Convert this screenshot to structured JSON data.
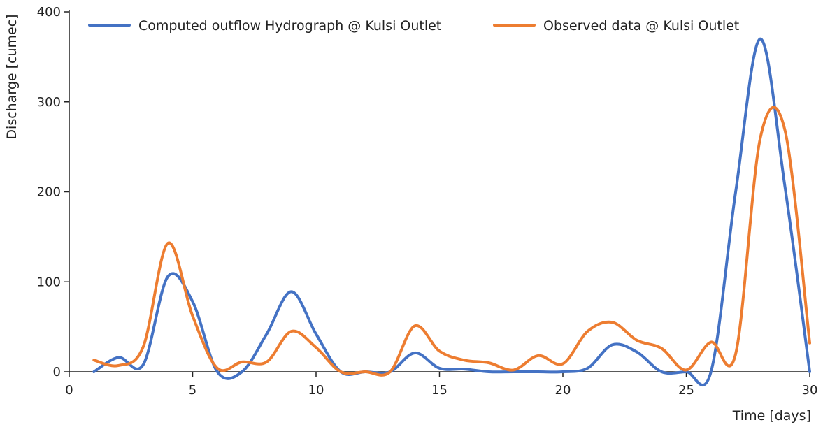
{
  "chart_data": {
    "type": "line",
    "xlabel": "Time [days]",
    "ylabel": "Discharge [cumec]",
    "xlim": [
      0,
      30
    ],
    "ylim": [
      0,
      400
    ],
    "x_ticks": [
      0,
      5,
      10,
      15,
      20,
      25,
      30
    ],
    "y_ticks": [
      0,
      100,
      200,
      300,
      400
    ],
    "grid": false,
    "legend_position": "top",
    "series": [
      {
        "name": "Computed outflow Hydrograph @ Kulsi Outlet",
        "color": "#4472c4",
        "x": [
          1,
          2,
          3,
          4,
          5,
          6,
          7,
          8,
          9,
          10,
          11,
          12,
          13,
          14,
          15,
          16,
          17,
          18,
          19,
          20,
          21,
          22,
          23,
          24,
          25,
          26,
          27,
          28,
          29,
          30
        ],
        "y": [
          0,
          16,
          8,
          106,
          78,
          0,
          0,
          42,
          89,
          42,
          0,
          0,
          0,
          21,
          4,
          3,
          0,
          0,
          0,
          0,
          4,
          30,
          22,
          0,
          0,
          0,
          200,
          370,
          205,
          0
        ]
      },
      {
        "name": "Observed data @ Kulsi Outlet",
        "color": "#ed7d31",
        "x": [
          1,
          2,
          3,
          4,
          5,
          6,
          7,
          8,
          9,
          10,
          11,
          12,
          13,
          14,
          15,
          16,
          17,
          18,
          19,
          20,
          21,
          22,
          23,
          24,
          25,
          26,
          27,
          28,
          29,
          30
        ],
        "y": [
          13,
          7,
          28,
          143,
          62,
          4,
          11,
          11,
          45,
          27,
          0,
          0,
          0,
          51,
          23,
          13,
          10,
          2,
          18,
          9,
          45,
          55,
          35,
          26,
          2,
          33,
          20,
          260,
          268,
          32
        ]
      }
    ]
  }
}
